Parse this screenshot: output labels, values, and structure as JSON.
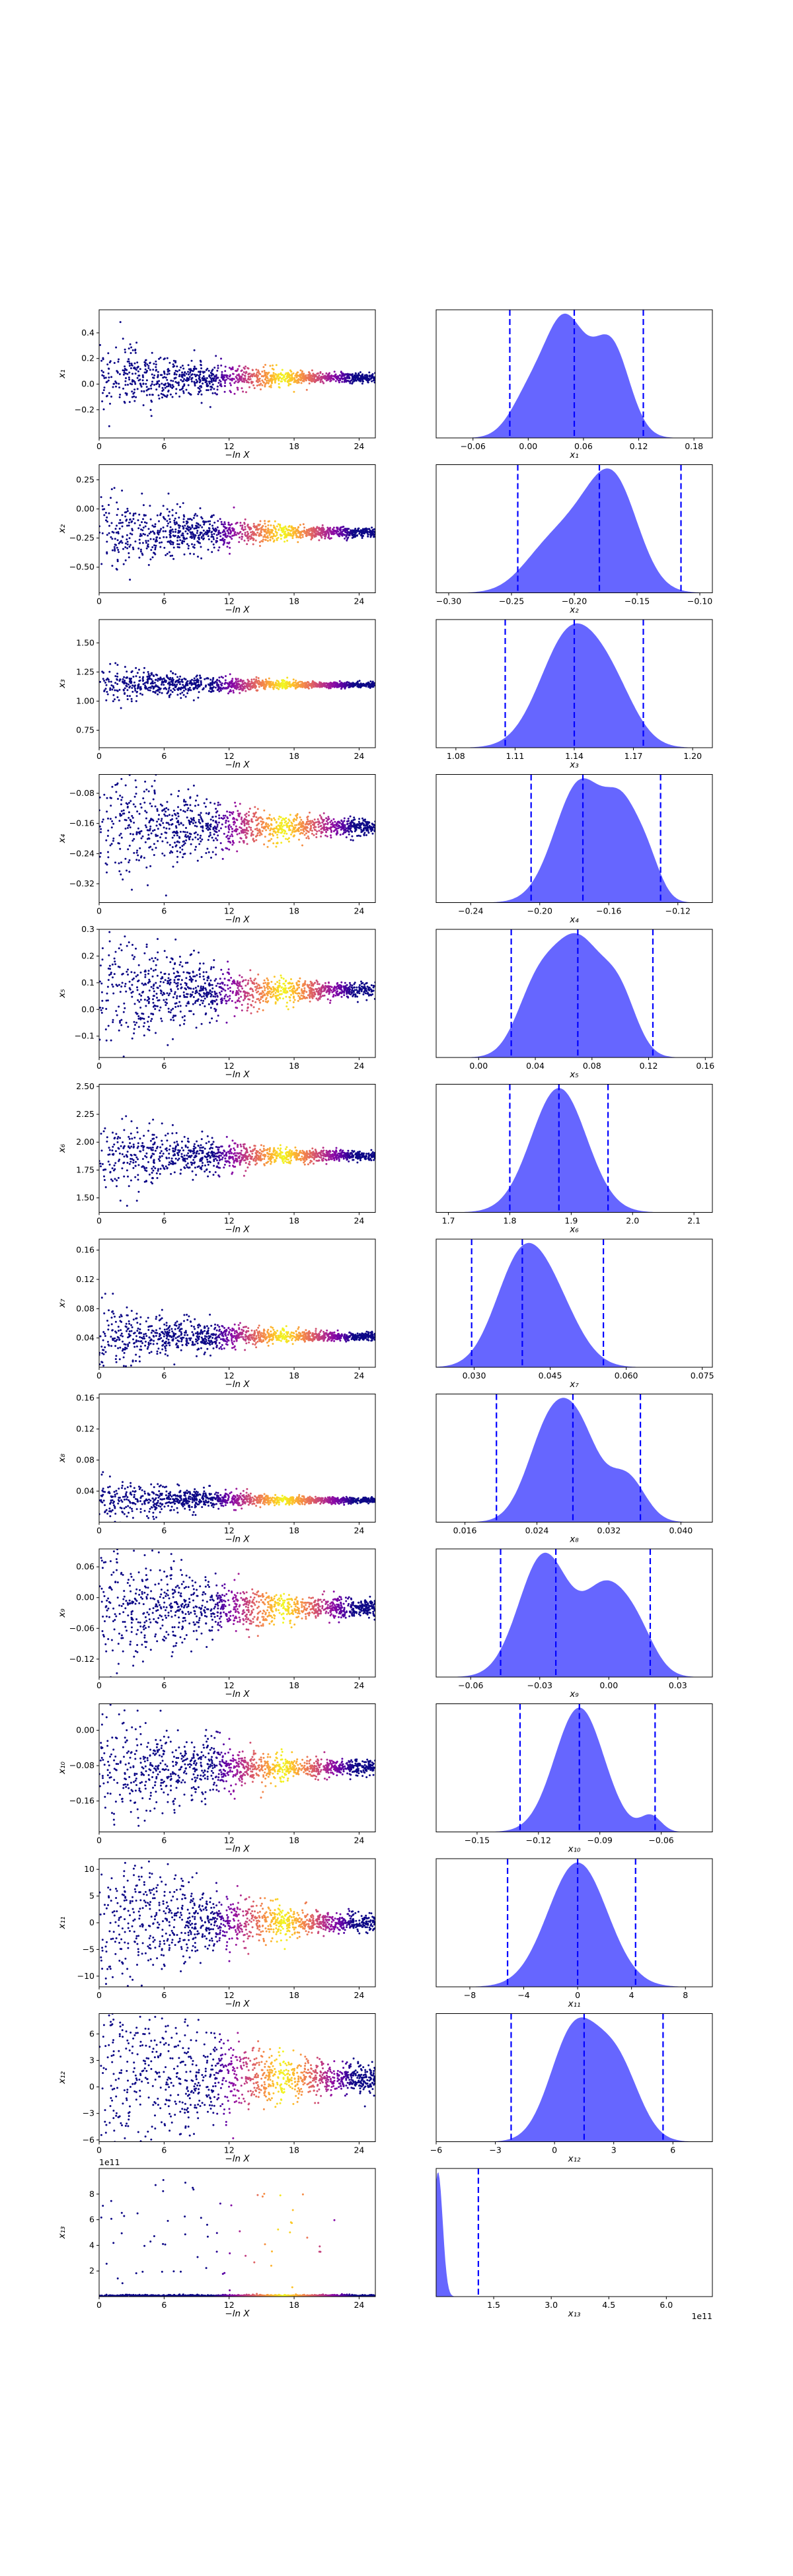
{
  "figure": {
    "point_colormap": [
      "#0d0887",
      "#5302a3",
      "#8b0aa5",
      "#b83289",
      "#db5c68",
      "#f48849",
      "#febd2a",
      "#f0f921"
    ],
    "kde_fill_color": "#0000ff",
    "kde_fill_opacity": 0.6,
    "quantile_line_color": "#0000ff",
    "quantile_line_style": "dashed",
    "scatter_xlabel": "−ln X",
    "scatter_x_ticks": [
      0,
      6,
      12,
      18,
      24
    ],
    "scatter_xlim": [
      0,
      25.5
    ]
  },
  "chart_data": [
    {
      "type": "scatter",
      "panel": 1,
      "ylabel": "x₁",
      "xlabel": "−ln X",
      "y_ticks": [
        -0.2,
        0.0,
        0.2,
        0.4
      ],
      "ylim": [
        -0.42,
        0.58
      ],
      "center": 0.05,
      "spread": 0.05,
      "skew": 0.0,
      "dist": "kde"
    },
    {
      "type": "area",
      "panel": 1,
      "xlabel": "x₁",
      "x_ticks": [
        -0.06,
        0.0,
        0.06,
        0.12,
        0.18
      ],
      "x_tick_labels": [
        "−0.06",
        "0.00",
        "0.06",
        "0.12",
        "0.18"
      ],
      "xlim": [
        -0.1,
        0.2
      ],
      "quantiles": [
        -0.02,
        0.05,
        0.125
      ],
      "peaks": [
        {
          "mu": 0.04,
          "s": 0.022,
          "a": 0.9
        },
        {
          "mu": 0.09,
          "s": 0.02,
          "a": 0.72
        },
        {
          "mu": 0.0,
          "s": 0.02,
          "a": 0.3
        }
      ]
    },
    {
      "type": "scatter",
      "panel": 2,
      "ylabel": "x₂",
      "xlabel": "−ln X",
      "y_ticks": [
        -0.5,
        -0.25,
        0.0,
        0.25
      ],
      "ylim": [
        -0.72,
        0.38
      ],
      "center": -0.2,
      "spread": 0.06,
      "skew": 0.0,
      "dist": "kde"
    },
    {
      "type": "area",
      "panel": 2,
      "xlabel": "x₂",
      "x_ticks": [
        -0.3,
        -0.25,
        -0.2,
        -0.15,
        -0.1
      ],
      "x_tick_labels": [
        "−0.30",
        "−0.25",
        "−0.20",
        "−0.15",
        "−0.10"
      ],
      "xlim": [
        -0.31,
        -0.09
      ],
      "quantiles": [
        -0.245,
        -0.18,
        -0.115
      ],
      "peaks": [
        {
          "mu": -0.185,
          "s": 0.025,
          "a": 0.8
        },
        {
          "mu": -0.165,
          "s": 0.018,
          "a": 0.6
        },
        {
          "mu": -0.225,
          "s": 0.02,
          "a": 0.3
        }
      ]
    },
    {
      "type": "scatter",
      "panel": 3,
      "ylabel": "x₃",
      "xlabel": "−ln X",
      "y_ticks": [
        0.75,
        1.0,
        1.25,
        1.5
      ],
      "ylim": [
        0.6,
        1.7
      ],
      "center": 1.14,
      "spread": 0.03,
      "skew": 0.0,
      "dist": "kde"
    },
    {
      "type": "area",
      "panel": 3,
      "xlabel": "x₃",
      "x_ticks": [
        1.08,
        1.11,
        1.14,
        1.17,
        1.2
      ],
      "x_tick_labels": [
        "1.08",
        "1.11",
        "1.14",
        "1.17",
        "1.20"
      ],
      "xlim": [
        1.07,
        1.21
      ],
      "quantiles": [
        1.105,
        1.14,
        1.175
      ],
      "peaks": [
        {
          "mu": 1.138,
          "s": 0.015,
          "a": 0.9
        },
        {
          "mu": 1.16,
          "s": 0.012,
          "a": 0.35
        }
      ]
    },
    {
      "type": "scatter",
      "panel": 4,
      "ylabel": "x₄",
      "xlabel": "−ln X",
      "y_ticks": [
        -0.32,
        -0.24,
        -0.16,
        -0.08
      ],
      "ylim": [
        -0.37,
        -0.03
      ],
      "center": -0.17,
      "spread": 0.03,
      "skew": 0.0,
      "dist": "kde"
    },
    {
      "type": "area",
      "panel": 4,
      "xlabel": "x₄",
      "x_ticks": [
        -0.24,
        -0.2,
        -0.16,
        -0.12
      ],
      "x_tick_labels": [
        "−0.24",
        "−0.20",
        "−0.16",
        "−0.12"
      ],
      "xlim": [
        -0.26,
        -0.1
      ],
      "quantiles": [
        -0.205,
        -0.175,
        -0.13
      ],
      "peaks": [
        {
          "mu": -0.176,
          "s": 0.015,
          "a": 0.9
        },
        {
          "mu": -0.152,
          "s": 0.009,
          "a": 0.5
        },
        {
          "mu": -0.138,
          "s": 0.008,
          "a": 0.3
        }
      ]
    },
    {
      "type": "scatter",
      "panel": 5,
      "ylabel": "x₅",
      "xlabel": "−ln X",
      "y_ticks": [
        -0.1,
        0.0,
        0.1,
        0.2,
        0.3
      ],
      "ylim": [
        -0.18,
        0.3
      ],
      "center": 0.07,
      "spread": 0.04,
      "skew": 0.0,
      "dist": "kde"
    },
    {
      "type": "area",
      "panel": 5,
      "xlabel": "x₅",
      "x_ticks": [
        0.0,
        0.04,
        0.08,
        0.12,
        0.16
      ],
      "x_tick_labels": [
        "0.00",
        "0.04",
        "0.08",
        "0.12",
        "0.16"
      ],
      "xlim": [
        -0.03,
        0.165
      ],
      "quantiles": [
        0.023,
        0.07,
        0.123
      ],
      "peaks": [
        {
          "mu": 0.07,
          "s": 0.018,
          "a": 0.8
        },
        {
          "mu": 0.04,
          "s": 0.014,
          "a": 0.4
        },
        {
          "mu": 0.1,
          "s": 0.012,
          "a": 0.35
        }
      ]
    },
    {
      "type": "scatter",
      "panel": 6,
      "ylabel": "x₆",
      "xlabel": "−ln X",
      "y_ticks": [
        1.5,
        1.75,
        2.0,
        2.25,
        2.5
      ],
      "ylim": [
        1.37,
        2.52
      ],
      "center": 1.88,
      "spread": 0.06,
      "skew": 0.0,
      "dist": "kde"
    },
    {
      "type": "area",
      "panel": 6,
      "xlabel": "x₆",
      "x_ticks": [
        1.7,
        1.8,
        1.9,
        2.0,
        2.1
      ],
      "x_tick_labels": [
        "1.7",
        "1.8",
        "1.9",
        "2.0",
        "2.1"
      ],
      "xlim": [
        1.68,
        2.13
      ],
      "quantiles": [
        1.8,
        1.88,
        1.96
      ],
      "peaks": [
        {
          "mu": 1.88,
          "s": 0.045,
          "a": 0.95
        }
      ]
    },
    {
      "type": "scatter",
      "panel": 7,
      "ylabel": "x₇",
      "xlabel": "−ln X",
      "y_ticks": [
        0.04,
        0.08,
        0.12,
        0.16
      ],
      "ylim": [
        0.0,
        0.175
      ],
      "center": 0.042,
      "spread": 0.008,
      "skew": 0.05,
      "dist": "kde"
    },
    {
      "type": "area",
      "panel": 7,
      "xlabel": "x₇",
      "x_ticks": [
        0.03,
        0.045,
        0.06,
        0.075
      ],
      "x_tick_labels": [
        "0.030",
        "0.045",
        "0.060",
        "0.075"
      ],
      "xlim": [
        0.0225,
        0.077
      ],
      "quantiles": [
        0.0295,
        0.0395,
        0.0555
      ],
      "peaks": [
        {
          "mu": 0.039,
          "s": 0.005,
          "a": 0.9
        },
        {
          "mu": 0.046,
          "s": 0.005,
          "a": 0.5
        }
      ]
    },
    {
      "type": "scatter",
      "panel": 8,
      "ylabel": "x₈",
      "xlabel": "−ln X",
      "y_ticks": [
        0.04,
        0.08,
        0.12,
        0.16
      ],
      "ylim": [
        0.0,
        0.165
      ],
      "center": 0.028,
      "spread": 0.005,
      "skew": 0.05,
      "dist": "kde"
    },
    {
      "type": "area",
      "panel": 8,
      "xlabel": "x₈",
      "x_ticks": [
        0.016,
        0.024,
        0.032,
        0.04
      ],
      "x_tick_labels": [
        "0.016",
        "0.024",
        "0.032",
        "0.040"
      ],
      "xlim": [
        0.0128,
        0.0435
      ],
      "quantiles": [
        0.0195,
        0.028,
        0.0355
      ],
      "peaks": [
        {
          "mu": 0.0255,
          "s": 0.0025,
          "a": 0.85
        },
        {
          "mu": 0.029,
          "s": 0.0022,
          "a": 0.6
        },
        {
          "mu": 0.034,
          "s": 0.002,
          "a": 0.4
        }
      ]
    },
    {
      "type": "scatter",
      "panel": 9,
      "ylabel": "x₉",
      "xlabel": "−ln X",
      "y_ticks": [
        -0.12,
        -0.06,
        0.0,
        0.06
      ],
      "ylim": [
        -0.155,
        0.095
      ],
      "center": -0.02,
      "spread": 0.025,
      "skew": 0.0,
      "dist": "kde"
    },
    {
      "type": "area",
      "panel": 9,
      "xlabel": "x₉",
      "x_ticks": [
        -0.06,
        -0.03,
        0.0,
        0.03
      ],
      "x_tick_labels": [
        "−0.06",
        "−0.03",
        "0.00",
        "0.03"
      ],
      "xlim": [
        -0.075,
        0.045
      ],
      "quantiles": [
        -0.047,
        -0.023,
        0.018
      ],
      "peaks": [
        {
          "mu": -0.028,
          "s": 0.011,
          "a": 0.85
        },
        {
          "mu": -0.002,
          "s": 0.009,
          "a": 0.55
        },
        {
          "mu": 0.012,
          "s": 0.008,
          "a": 0.3
        }
      ]
    },
    {
      "type": "scatter",
      "panel": 10,
      "ylabel": "x₁₀",
      "xlabel": "−ln X",
      "y_ticks": [
        -0.16,
        -0.08,
        0.0
      ],
      "ylim": [
        -0.23,
        0.06
      ],
      "center": -0.085,
      "spread": 0.025,
      "skew": 0.0,
      "dist": "kde"
    },
    {
      "type": "area",
      "panel": 10,
      "xlabel": "x₁₀",
      "x_ticks": [
        -0.15,
        -0.12,
        -0.09,
        -0.06
      ],
      "x_tick_labels": [
        "−0.15",
        "−0.12",
        "−0.09",
        "−0.06"
      ],
      "xlim": [
        -0.17,
        -0.035
      ],
      "quantiles": [
        -0.129,
        -0.1,
        -0.063
      ],
      "peaks": [
        {
          "mu": -0.1,
          "s": 0.012,
          "a": 0.95
        },
        {
          "mu": -0.065,
          "s": 0.005,
          "a": 0.12
        }
      ]
    },
    {
      "type": "scatter",
      "panel": 11,
      "ylabel": "x₁₁",
      "xlabel": "−ln X",
      "y_ticks": [
        -10,
        -5,
        0,
        5,
        10
      ],
      "ylim": [
        -12,
        12
      ],
      "center": 0.0,
      "spread": 2.5,
      "skew": 0.0,
      "dist": "kde"
    },
    {
      "type": "area",
      "panel": 11,
      "xlabel": "x₁₁",
      "x_ticks": [
        -8,
        -4,
        0,
        4,
        8
      ],
      "x_tick_labels": [
        "−8",
        "−4",
        "0",
        "4",
        "8"
      ],
      "xlim": [
        -10.5,
        10
      ],
      "quantiles": [
        -5.2,
        0.0,
        4.3
      ],
      "peaks": [
        {
          "mu": 0,
          "s": 2.2,
          "a": 0.95
        }
      ]
    },
    {
      "type": "scatter",
      "panel": 12,
      "ylabel": "x₁₂",
      "xlabel": "−ln X",
      "y_ticks": [
        -6,
        -3,
        0,
        3,
        6
      ],
      "ylim": [
        -6.2,
        8.3
      ],
      "center": 1.0,
      "spread": 2.5,
      "skew": 0.0,
      "dist": "kde"
    },
    {
      "type": "area",
      "panel": 12,
      "xlabel": "x₁₂",
      "x_ticks": [
        -6,
        -3,
        0,
        3,
        6
      ],
      "x_tick_labels": [
        "−6",
        "−3",
        "0",
        "3",
        "6"
      ],
      "xlim": [
        -6,
        8
      ],
      "quantiles": [
        -2.2,
        1.5,
        5.5
      ],
      "peaks": [
        {
          "mu": 1,
          "s": 1.2,
          "a": 0.9
        },
        {
          "mu": 3.2,
          "s": 1.1,
          "a": 0.6
        }
      ]
    },
    {
      "type": "scatter",
      "panel": 13,
      "ylabel": "x₁₃",
      "xlabel": "−ln X",
      "y_ticks": [
        2,
        4,
        6,
        8
      ],
      "ylim": [
        0.0,
        10.0
      ],
      "center": 0.02,
      "spread": 0.02,
      "skew": 1.0,
      "dist": "heavy",
      "offset_text": "1e11"
    },
    {
      "type": "area",
      "panel": 13,
      "xlabel": "x₁₃",
      "x_ticks": [
        1.5,
        3.0,
        4.5,
        6.0
      ],
      "x_tick_labels": [
        "1.5",
        "3.0",
        "4.5",
        "6.0"
      ],
      "xlim": [
        0.0,
        7.2
      ],
      "quantiles": [
        1.1
      ],
      "peaks": [
        {
          "mu": 0.05,
          "s": 0.12,
          "a": 1.0
        }
      ],
      "offset_text": "1e11"
    }
  ]
}
